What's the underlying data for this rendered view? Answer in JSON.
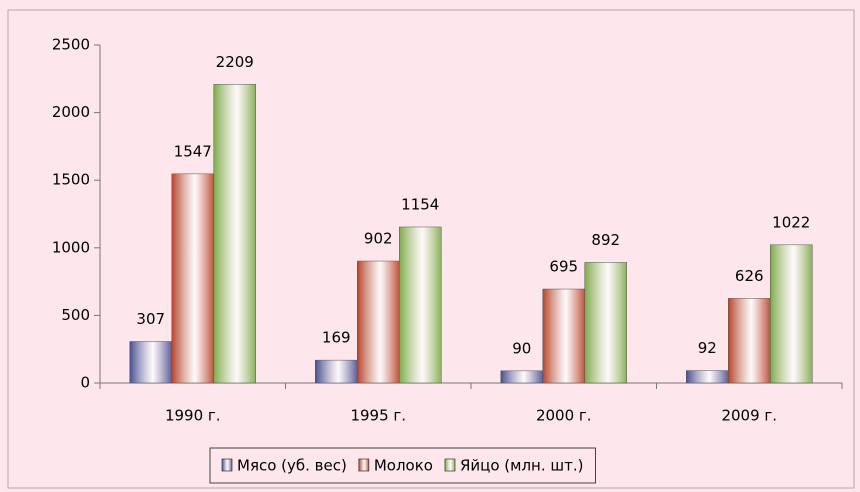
{
  "chart_data": {
    "type": "bar",
    "categories": [
      "1990 г.",
      "1995 г.",
      "2000 г.",
      "2009 г."
    ],
    "series": [
      {
        "name": "Мясо (уб. вес)",
        "color": "#4b4f8f",
        "values": [
          307,
          169,
          90,
          92
        ]
      },
      {
        "name": "Молоко",
        "color": "#b7442a",
        "values": [
          1547,
          902,
          695,
          626
        ]
      },
      {
        "name": "Яйцо (млн. шт.)",
        "color": "#7faa4a",
        "values": [
          2209,
          1154,
          892,
          1022
        ]
      }
    ],
    "ylim": [
      0,
      2500
    ],
    "yticks": [
      0,
      500,
      1000,
      1500,
      2000,
      2500
    ],
    "grid": false,
    "legend": "bottom"
  }
}
